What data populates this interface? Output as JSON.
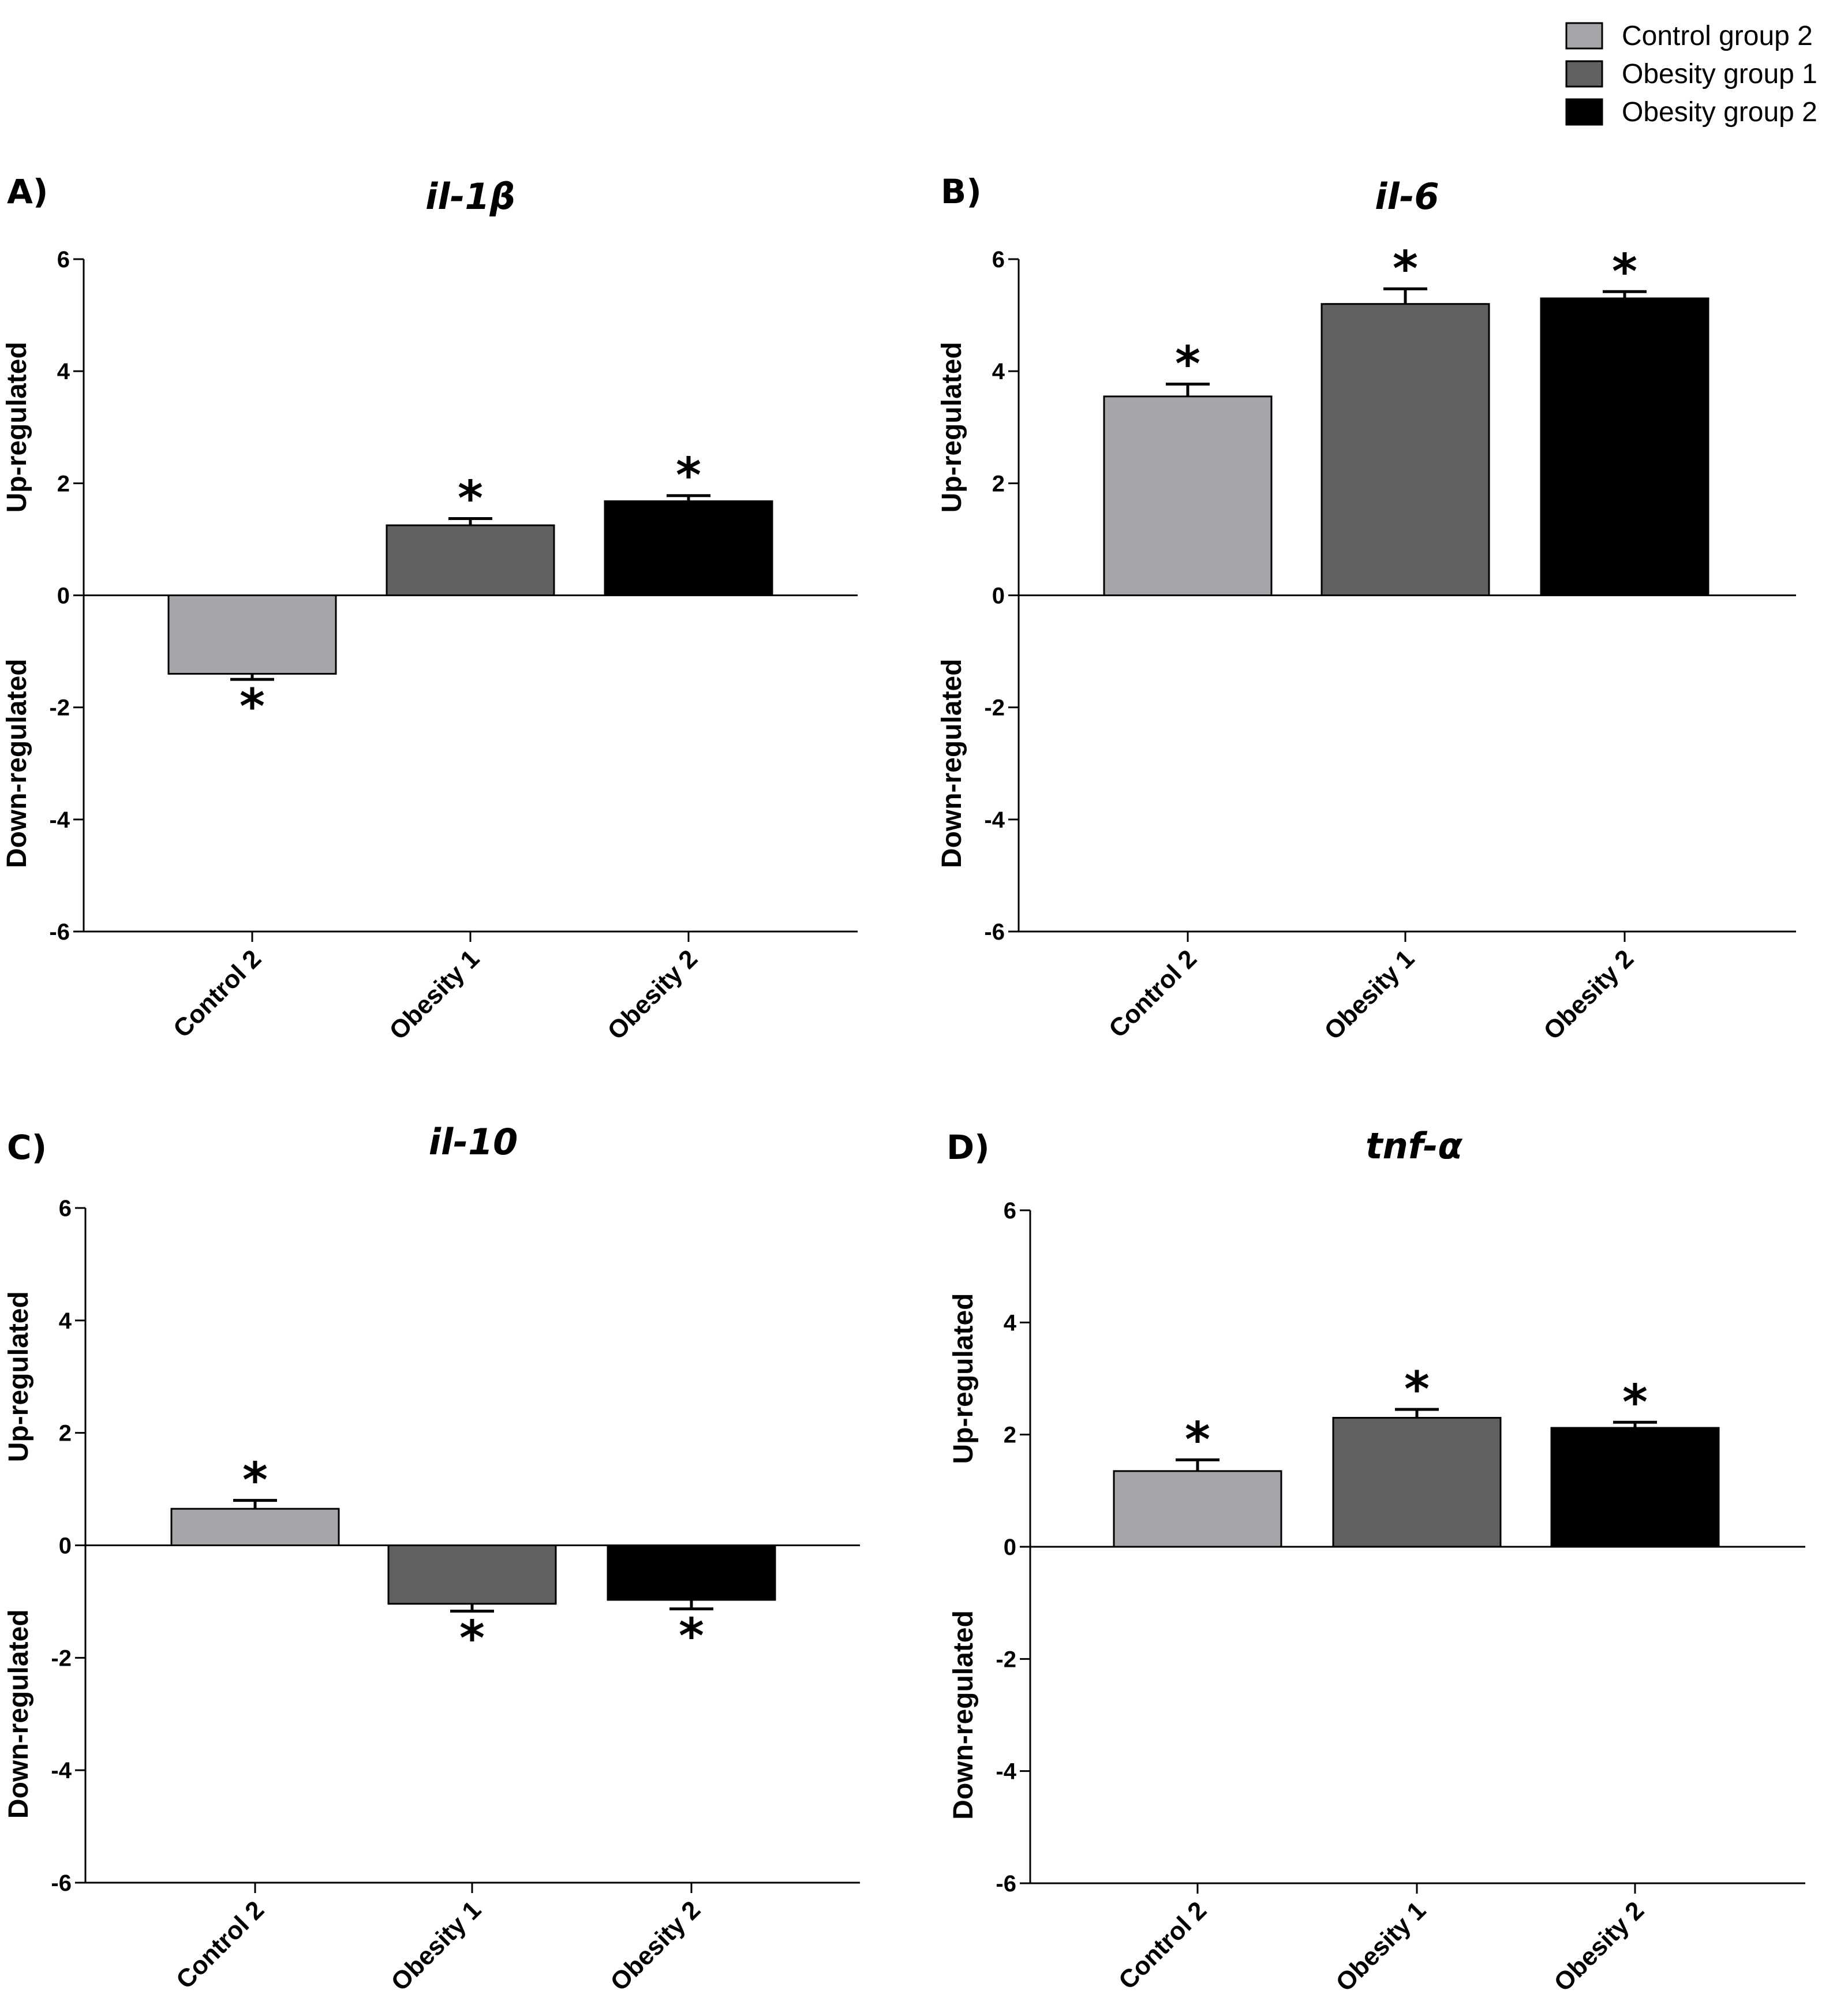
{
  "legend": [
    {
      "label": "Control group 2",
      "color": "#a6a5aa"
    },
    {
      "label": "Obesity group 1",
      "color": "#606060"
    },
    {
      "label": "Obesity group 2",
      "color": "#000000"
    }
  ],
  "y_axis_labels": {
    "up": "Up-regulated",
    "down": "Down-regulated"
  },
  "chart_data": [
    {
      "panel": "A)",
      "type": "bar",
      "title": "il-1β",
      "categories": [
        "Control 2",
        "Obesity 1",
        "Obesity 2"
      ],
      "values": [
        -1.4,
        1.25,
        1.68
      ],
      "errors": [
        0.1,
        0.12,
        0.1
      ],
      "significant": [
        true,
        true,
        true
      ],
      "ylim": [
        -6,
        6
      ],
      "yticks": [
        6,
        4,
        2,
        0,
        -2,
        -4,
        -6
      ]
    },
    {
      "panel": "B)",
      "type": "bar",
      "title": "il-6",
      "categories": [
        "Control 2",
        "Obesity 1",
        "Obesity 2"
      ],
      "values": [
        3.55,
        5.2,
        5.3
      ],
      "errors": [
        0.22,
        0.27,
        0.12
      ],
      "significant": [
        true,
        true,
        true
      ],
      "ylim": [
        -6,
        6
      ],
      "yticks": [
        6,
        4,
        2,
        0,
        -2,
        -4,
        -6
      ]
    },
    {
      "panel": "C)",
      "type": "bar",
      "title": "il-10",
      "categories": [
        "Control 2",
        "Obesity 1",
        "Obesity 2"
      ],
      "values": [
        0.65,
        -1.04,
        -0.97
      ],
      "errors": [
        0.15,
        0.13,
        0.16
      ],
      "significant": [
        true,
        true,
        true
      ],
      "ylim": [
        -6,
        6
      ],
      "yticks": [
        6,
        4,
        2,
        0,
        -2,
        -4,
        -6
      ]
    },
    {
      "panel": "D)",
      "type": "bar",
      "title": "tnf-α",
      "categories": [
        "Control 2",
        "Obesity 1",
        "Obesity 2"
      ],
      "values": [
        1.35,
        2.3,
        2.12
      ],
      "errors": [
        0.2,
        0.15,
        0.1
      ],
      "significant": [
        true,
        true,
        true
      ],
      "ylim": [
        -6,
        6
      ],
      "yticks": [
        6,
        4,
        2,
        0,
        -2,
        -4,
        -6
      ]
    }
  ]
}
